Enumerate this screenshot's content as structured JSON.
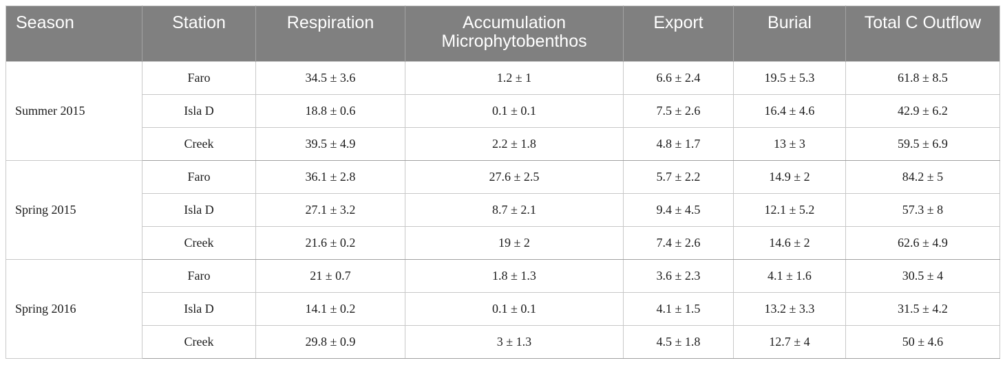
{
  "table": {
    "headers": [
      "Season",
      "Station",
      "Respiration",
      "Accumulation\nMicrophytobenthos",
      "Export",
      "Burial",
      "Total C Outflow"
    ],
    "groups": [
      {
        "season": "Summer 2015",
        "rows": [
          {
            "station": "Faro",
            "respiration": "34.5 ± 3.6",
            "accumulation": "1.2 ± 1",
            "export": "6.6 ± 2.4",
            "burial": "19.5 ± 5.3",
            "total": "61.8 ± 8.5"
          },
          {
            "station": "Isla D",
            "respiration": "18.8 ± 0.6",
            "accumulation": "0.1 ± 0.1",
            "export": "7.5 ± 2.6",
            "burial": "16.4 ± 4.6",
            "total": "42.9 ± 6.2"
          },
          {
            "station": "Creek",
            "respiration": "39.5 ± 4.9",
            "accumulation": "2.2 ± 1.8",
            "export": "4.8 ± 1.7",
            "burial": "13 ± 3",
            "total": "59.5 ± 6.9"
          }
        ]
      },
      {
        "season": "Spring 2015",
        "rows": [
          {
            "station": "Faro",
            "respiration": "36.1 ± 2.8",
            "accumulation": "27.6 ± 2.5",
            "export": "5.7 ± 2.2",
            "burial": "14.9 ± 2",
            "total": "84.2 ± 5"
          },
          {
            "station": "Isla D",
            "respiration": "27.1 ± 3.2",
            "accumulation": "8.7 ± 2.1",
            "export": "9.4 ± 4.5",
            "burial": "12.1 ± 5.2",
            "total": "57.3 ± 8"
          },
          {
            "station": "Creek",
            "respiration": "21.6 ± 0.2",
            "accumulation": "19 ± 2",
            "export": "7.4 ± 2.6",
            "burial": "14.6 ± 2",
            "total": "62.6 ± 4.9"
          }
        ]
      },
      {
        "season": "Spring 2016",
        "rows": [
          {
            "station": "Faro",
            "respiration": "21 ± 0.7",
            "accumulation": "1.8 ± 1.3",
            "export": "3.6 ± 2.3",
            "burial": "4.1 ± 1.6",
            "total": "30.5 ± 4"
          },
          {
            "station": "Isla D",
            "respiration": "14.1 ± 0.2",
            "accumulation": "0.1 ± 0.1",
            "export": "4.1 ± 1.5",
            "burial": "13.2 ± 3.3",
            "total": "31.5 ± 4.2"
          },
          {
            "station": "Creek",
            "respiration": "29.8 ± 0.9",
            "accumulation": "3 ± 1.3",
            "export": "4.5 ± 1.8",
            "burial": "12.7 ± 4",
            "total": "50 ± 4.6"
          }
        ]
      }
    ]
  }
}
